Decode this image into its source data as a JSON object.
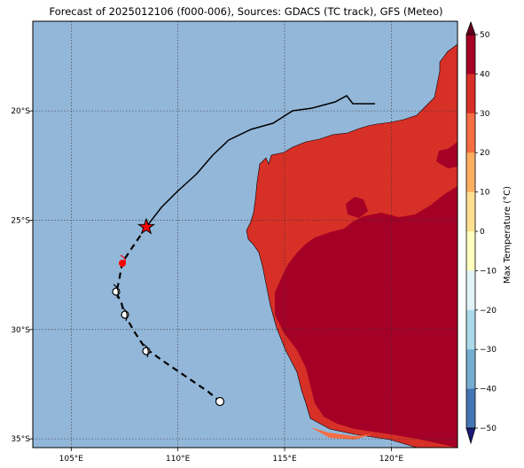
{
  "title": "Forecast of 2025012106 (f000-006), Sources: GDACS (TC track), GFS (Meteo)",
  "map": {
    "lon_range": [
      103.2,
      123.1
    ],
    "lat_range": [
      -35.4,
      -15.9
    ],
    "lon_ticks": [
      {
        "value": 105,
        "label": "105°E"
      },
      {
        "value": 110,
        "label": "110°E"
      },
      {
        "value": 115,
        "label": "115°E"
      },
      {
        "value": 120,
        "label": "120°E"
      }
    ],
    "lat_ticks": [
      {
        "value": -20,
        "label": "20°S"
      },
      {
        "value": -25,
        "label": "25°S"
      },
      {
        "value": -30,
        "label": "30°S"
      },
      {
        "value": -35,
        "label": "35°S"
      }
    ],
    "ocean_color": "#93b7d9",
    "gridlines": true
  },
  "colorbar": {
    "label": "Max Temperature (°C)",
    "ticks": [
      "50",
      "40",
      "30",
      "20",
      "10",
      "0",
      "−10",
      "−20",
      "−30",
      "−40",
      "−50"
    ],
    "colors": [
      "#a50026",
      "#d73027",
      "#f46d43",
      "#fdae61",
      "#fee090",
      "#ffffbf",
      "#e0f3f8",
      "#abd9e9",
      "#74add1",
      "#4575b4",
      "#313695"
    ]
  },
  "track": {
    "past_color": "#000000",
    "forecast_color": "#000000",
    "current_position": {
      "lon": 108.4,
      "lat": -25.1
    },
    "current_marker": "red-star",
    "red_dot": {
      "lon": 108.0,
      "lat": -26.8
    }
  }
}
